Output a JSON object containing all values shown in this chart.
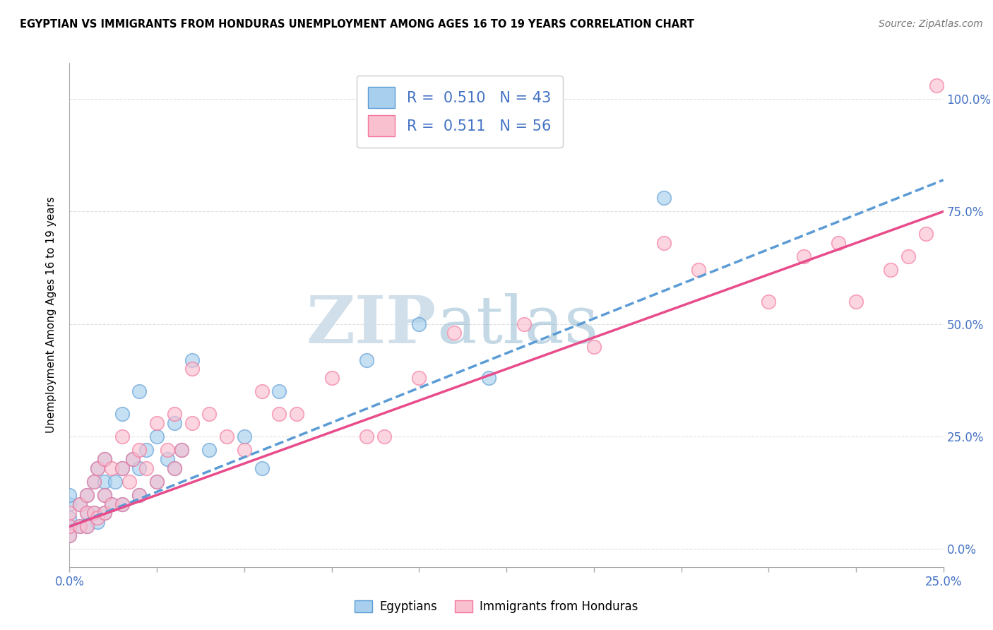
{
  "title": "EGYPTIAN VS IMMIGRANTS FROM HONDURAS UNEMPLOYMENT AMONG AGES 16 TO 19 YEARS CORRELATION CHART",
  "source": "Source: ZipAtlas.com",
  "x_min": 0.0,
  "x_max": 0.25,
  "y_min": -0.04,
  "y_max": 1.08,
  "blue_R": 0.51,
  "blue_N": 43,
  "pink_R": 0.511,
  "pink_N": 56,
  "blue_color": "#a8d0ee",
  "pink_color": "#f9c0d0",
  "blue_edge_color": "#5b9bd5",
  "pink_edge_color": "#f4749b",
  "blue_line_color": "#5b9bd5",
  "pink_line_color": "#e84c8b",
  "watermark_color": "#ccdce8",
  "legend_label_blue": "Egyptians",
  "legend_label_pink": "Immigrants from Honduras",
  "blue_scatter_x": [
    0.0,
    0.0,
    0.0,
    0.0,
    0.0,
    0.003,
    0.003,
    0.005,
    0.005,
    0.005,
    0.007,
    0.007,
    0.008,
    0.008,
    0.01,
    0.01,
    0.01,
    0.01,
    0.012,
    0.013,
    0.015,
    0.015,
    0.015,
    0.018,
    0.02,
    0.02,
    0.02,
    0.022,
    0.025,
    0.025,
    0.028,
    0.03,
    0.03,
    0.032,
    0.035,
    0.04,
    0.05,
    0.055,
    0.06,
    0.085,
    0.1,
    0.12,
    0.17
  ],
  "blue_scatter_y": [
    0.03,
    0.05,
    0.07,
    0.1,
    0.12,
    0.05,
    0.1,
    0.05,
    0.08,
    0.12,
    0.08,
    0.15,
    0.06,
    0.18,
    0.08,
    0.12,
    0.15,
    0.2,
    0.1,
    0.15,
    0.1,
    0.18,
    0.3,
    0.2,
    0.12,
    0.18,
    0.35,
    0.22,
    0.15,
    0.25,
    0.2,
    0.18,
    0.28,
    0.22,
    0.42,
    0.22,
    0.25,
    0.18,
    0.35,
    0.42,
    0.5,
    0.38,
    0.78
  ],
  "pink_scatter_x": [
    0.0,
    0.0,
    0.0,
    0.003,
    0.003,
    0.005,
    0.005,
    0.005,
    0.007,
    0.007,
    0.008,
    0.008,
    0.01,
    0.01,
    0.01,
    0.012,
    0.012,
    0.015,
    0.015,
    0.015,
    0.017,
    0.018,
    0.02,
    0.02,
    0.022,
    0.025,
    0.025,
    0.028,
    0.03,
    0.03,
    0.032,
    0.035,
    0.035,
    0.04,
    0.045,
    0.05,
    0.055,
    0.06,
    0.065,
    0.075,
    0.085,
    0.09,
    0.1,
    0.11,
    0.13,
    0.15,
    0.17,
    0.18,
    0.2,
    0.21,
    0.22,
    0.225,
    0.235,
    0.24,
    0.245,
    0.248
  ],
  "pink_scatter_y": [
    0.03,
    0.05,
    0.08,
    0.05,
    0.1,
    0.05,
    0.08,
    0.12,
    0.08,
    0.15,
    0.07,
    0.18,
    0.08,
    0.12,
    0.2,
    0.1,
    0.18,
    0.1,
    0.18,
    0.25,
    0.15,
    0.2,
    0.12,
    0.22,
    0.18,
    0.15,
    0.28,
    0.22,
    0.18,
    0.3,
    0.22,
    0.28,
    0.4,
    0.3,
    0.25,
    0.22,
    0.35,
    0.3,
    0.3,
    0.38,
    0.25,
    0.25,
    0.38,
    0.48,
    0.5,
    0.45,
    0.68,
    0.62,
    0.55,
    0.65,
    0.68,
    0.55,
    0.62,
    0.65,
    0.7,
    1.03
  ],
  "blue_trend_x0": 0.0,
  "blue_trend_x1": 0.25,
  "blue_trend_y0": 0.05,
  "blue_trend_y1": 0.82,
  "pink_trend_x0": 0.0,
  "pink_trend_x1": 0.25,
  "pink_trend_y0": 0.05,
  "pink_trend_y1": 0.75,
  "grid_color": "#e0e0e0",
  "bg_color": "#ffffff",
  "x_ticks": [
    0.0,
    0.025,
    0.05,
    0.075,
    0.1,
    0.125,
    0.15,
    0.175,
    0.2,
    0.225,
    0.25
  ],
  "y_ticks": [
    0.0,
    0.25,
    0.5,
    0.75,
    1.0
  ]
}
